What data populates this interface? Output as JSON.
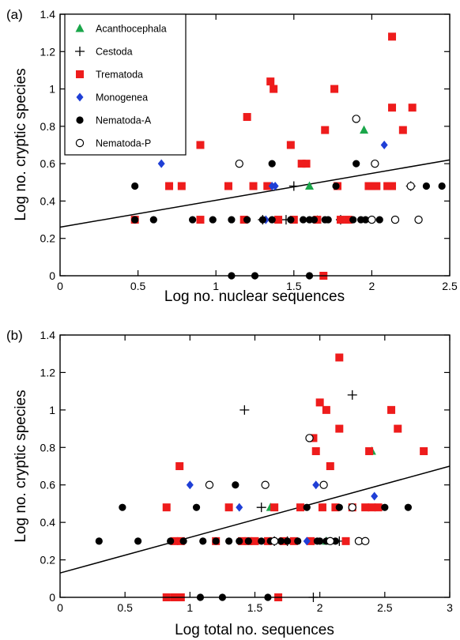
{
  "chart_data": [
    {
      "type": "scatter",
      "panel_label": "(a)",
      "xlabel": "Log no. nuclear sequences",
      "ylabel": "Log no. cryptic species",
      "xlim": [
        0,
        2.5
      ],
      "ylim": [
        0,
        1.4
      ],
      "xticks": [
        "0",
        "0.5",
        "1",
        "1.5",
        "2",
        "2.5"
      ],
      "yticks": [
        "0",
        "0.2",
        "0.4",
        "0.6",
        "0.8",
        "1",
        "1.2",
        "1.4"
      ],
      "legend_position": "top-left",
      "regression_line": {
        "x": [
          0,
          2.5
        ],
        "y": [
          0.26,
          0.62
        ]
      },
      "series": [
        {
          "name": "Acanthocephala",
          "marker": "triangle",
          "color": "#1aa64a",
          "points": [
            [
              1.6,
              0.48
            ],
            [
              1.95,
              0.78
            ],
            [
              1.65,
              0.3
            ]
          ]
        },
        {
          "name": "Cestoda",
          "marker": "plus",
          "color": "#000000",
          "points": [
            [
              1.5,
              0.48
            ],
            [
              1.3,
              0.3
            ],
            [
              1.45,
              0.3
            ],
            [
              2.25,
              0.48
            ],
            [
              1.8,
              0.3
            ]
          ]
        },
        {
          "name": "Trematoda",
          "marker": "square",
          "color": "#ee1c1c",
          "points": [
            [
              0.48,
              0.3
            ],
            [
              0.7,
              0.48
            ],
            [
              0.78,
              0.48
            ],
            [
              0.9,
              0.7
            ],
            [
              0.9,
              0.3
            ],
            [
              1.08,
              0.48
            ],
            [
              1.18,
              0.3
            ],
            [
              1.2,
              0.85
            ],
            [
              1.24,
              0.48
            ],
            [
              1.33,
              0.48
            ],
            [
              1.35,
              1.04
            ],
            [
              1.37,
              1.0
            ],
            [
              1.4,
              0.3
            ],
            [
              1.48,
              0.7
            ],
            [
              1.5,
              0.3
            ],
            [
              1.55,
              0.6
            ],
            [
              1.58,
              0.6
            ],
            [
              1.65,
              0.3
            ],
            [
              1.7,
              0.78
            ],
            [
              1.76,
              1.0
            ],
            [
              1.78,
              0.48
            ],
            [
              1.8,
              0.3
            ],
            [
              1.85,
              0.3
            ],
            [
              1.98,
              0.48
            ],
            [
              2.0,
              0.48
            ],
            [
              2.03,
              0.48
            ],
            [
              2.1,
              0.48
            ],
            [
              2.13,
              1.28
            ],
            [
              2.13,
              0.9
            ],
            [
              2.13,
              0.48
            ],
            [
              2.2,
              0.78
            ],
            [
              2.26,
              0.9
            ],
            [
              1.69,
              0.0
            ]
          ]
        },
        {
          "name": "Monogenea",
          "marker": "diamond",
          "color": "#1f3fd6",
          "points": [
            [
              0.65,
              0.6
            ],
            [
              1.36,
              0.48
            ],
            [
              1.38,
              0.48
            ],
            [
              1.32,
              0.3
            ],
            [
              2.08,
              0.7
            ]
          ]
        },
        {
          "name": "Nematoda-A",
          "marker": "filled-circle",
          "color": "#000000",
          "points": [
            [
              0.48,
              0.48
            ],
            [
              0.48,
              0.3
            ],
            [
              0.6,
              0.3
            ],
            [
              0.85,
              0.3
            ],
            [
              0.98,
              0.3
            ],
            [
              1.1,
              0.3
            ],
            [
              1.2,
              0.3
            ],
            [
              1.3,
              0.3
            ],
            [
              1.36,
              0.6
            ],
            [
              1.36,
              0.3
            ],
            [
              1.48,
              0.3
            ],
            [
              1.56,
              0.3
            ],
            [
              1.6,
              0.3
            ],
            [
              1.63,
              0.3
            ],
            [
              1.7,
              0.3
            ],
            [
              1.72,
              0.3
            ],
            [
              1.77,
              0.48
            ],
            [
              1.88,
              0.3
            ],
            [
              1.93,
              0.3
            ],
            [
              1.96,
              0.3
            ],
            [
              2.05,
              0.3
            ],
            [
              1.9,
              0.6
            ],
            [
              2.35,
              0.48
            ],
            [
              2.45,
              0.48
            ],
            [
              2.25,
              0.48
            ],
            [
              1.1,
              0.0
            ],
            [
              1.25,
              0.0
            ],
            [
              1.6,
              0.0
            ]
          ]
        },
        {
          "name": "Nematoda-P",
          "marker": "open-circle",
          "color": "#000000",
          "points": [
            [
              1.15,
              0.6
            ],
            [
              1.9,
              0.84
            ],
            [
              2.02,
              0.6
            ],
            [
              2.25,
              0.48
            ],
            [
              2.15,
              0.3
            ],
            [
              2.3,
              0.3
            ],
            [
              2.0,
              0.3
            ]
          ]
        }
      ]
    },
    {
      "type": "scatter",
      "panel_label": "(b)",
      "xlabel": "Log total no. sequences",
      "ylabel": "Log no. cryptic species",
      "xlim": [
        0,
        3
      ],
      "ylim": [
        0,
        1.4
      ],
      "xticks": [
        "0",
        "0.5",
        "1",
        "1.5",
        "2",
        "2.5",
        "3"
      ],
      "yticks": [
        "0",
        "0.2",
        "0.4",
        "0.6",
        "0.8",
        "1",
        "1.2",
        "1.4"
      ],
      "regression_line": {
        "x": [
          0,
          3
        ],
        "y": [
          0.13,
          0.7
        ]
      },
      "series": [
        {
          "name": "Acanthocephala",
          "marker": "triangle",
          "color": "#1aa64a",
          "points": [
            [
              1.62,
              0.48
            ],
            [
              2.4,
              0.78
            ],
            [
              2.05,
              0.3
            ]
          ]
        },
        {
          "name": "Cestoda",
          "marker": "plus",
          "color": "#000000",
          "points": [
            [
              1.42,
              1.0
            ],
            [
              2.25,
              1.08
            ],
            [
              1.55,
              0.48
            ],
            [
              1.65,
              0.3
            ],
            [
              1.75,
              0.3
            ],
            [
              2.15,
              0.3
            ],
            [
              1.95,
              0.0
            ]
          ]
        },
        {
          "name": "Trematoda",
          "marker": "square",
          "color": "#ee1c1c",
          "points": [
            [
              0.82,
              0.48
            ],
            [
              0.88,
              0.3
            ],
            [
              0.92,
              0.7
            ],
            [
              0.93,
              0.3
            ],
            [
              1.2,
              0.3
            ],
            [
              1.3,
              0.48
            ],
            [
              1.4,
              0.3
            ],
            [
              1.45,
              0.3
            ],
            [
              1.5,
              0.3
            ],
            [
              1.6,
              0.3
            ],
            [
              1.65,
              0.48
            ],
            [
              1.72,
              0.3
            ],
            [
              1.8,
              0.3
            ],
            [
              1.85,
              0.48
            ],
            [
              1.93,
              0.3
            ],
            [
              1.95,
              0.85
            ],
            [
              1.97,
              0.78
            ],
            [
              2.0,
              1.04
            ],
            [
              2.02,
              0.48
            ],
            [
              2.05,
              1.0
            ],
            [
              2.08,
              0.7
            ],
            [
              2.12,
              0.48
            ],
            [
              2.15,
              1.28
            ],
            [
              2.15,
              0.9
            ],
            [
              2.2,
              0.3
            ],
            [
              2.25,
              0.48
            ],
            [
              2.35,
              0.48
            ],
            [
              2.38,
              0.78
            ],
            [
              2.4,
              0.48
            ],
            [
              2.45,
              0.48
            ],
            [
              2.55,
              1.0
            ],
            [
              2.6,
              0.9
            ],
            [
              2.8,
              0.78
            ],
            [
              1.68,
              0.0
            ],
            [
              0.82,
              0.0
            ],
            [
              0.88,
              0.0
            ],
            [
              0.93,
              0.0
            ]
          ]
        },
        {
          "name": "Monogenea",
          "marker": "diamond",
          "color": "#1f3fd6",
          "points": [
            [
              1.0,
              0.6
            ],
            [
              1.38,
              0.48
            ],
            [
              1.97,
              0.6
            ],
            [
              1.9,
              0.3
            ],
            [
              2.42,
              0.54
            ]
          ]
        },
        {
          "name": "Nematoda-A",
          "marker": "filled-circle",
          "color": "#000000",
          "points": [
            [
              0.3,
              0.3
            ],
            [
              0.48,
              0.48
            ],
            [
              0.6,
              0.3
            ],
            [
              0.85,
              0.3
            ],
            [
              0.95,
              0.3
            ],
            [
              1.05,
              0.48
            ],
            [
              1.1,
              0.3
            ],
            [
              1.2,
              0.3
            ],
            [
              1.3,
              0.3
            ],
            [
              1.35,
              0.6
            ],
            [
              1.38,
              0.3
            ],
            [
              1.45,
              0.3
            ],
            [
              1.55,
              0.3
            ],
            [
              1.62,
              0.3
            ],
            [
              1.7,
              0.3
            ],
            [
              1.75,
              0.3
            ],
            [
              1.83,
              0.3
            ],
            [
              1.9,
              0.48
            ],
            [
              1.98,
              0.3
            ],
            [
              2.0,
              0.3
            ],
            [
              2.05,
              0.3
            ],
            [
              2.12,
              0.3
            ],
            [
              2.15,
              0.48
            ],
            [
              2.25,
              0.48
            ],
            [
              2.5,
              0.48
            ],
            [
              2.68,
              0.48
            ],
            [
              1.08,
              0.0
            ],
            [
              1.25,
              0.0
            ],
            [
              1.6,
              0.0
            ]
          ]
        },
        {
          "name": "Nematoda-P",
          "marker": "open-circle",
          "color": "#000000",
          "points": [
            [
              1.15,
              0.6
            ],
            [
              1.58,
              0.6
            ],
            [
              1.92,
              0.85
            ],
            [
              2.03,
              0.6
            ],
            [
              2.25,
              0.48
            ],
            [
              2.08,
              0.3
            ],
            [
              2.3,
              0.3
            ],
            [
              2.35,
              0.3
            ],
            [
              1.65,
              0.3
            ]
          ]
        }
      ]
    }
  ]
}
